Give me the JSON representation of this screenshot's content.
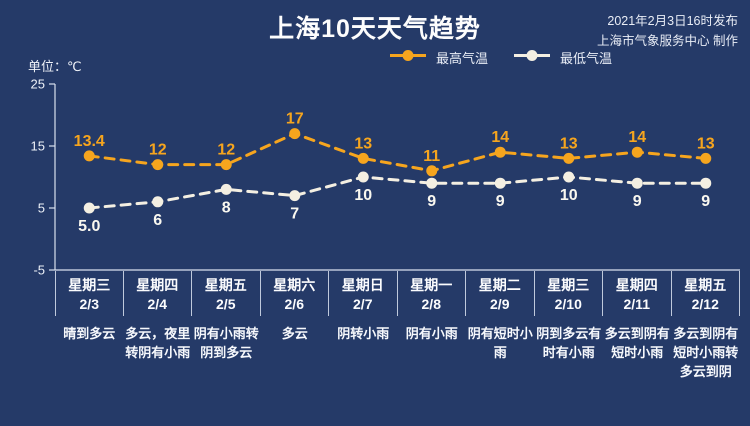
{
  "header": {
    "title": "上海10天天气趋势",
    "issued_line1": "2021年2月3日16时发布",
    "issued_line2": "上海市气象服务中心 制作"
  },
  "colors": {
    "background": "#253A68",
    "max_series": "#F6A51E",
    "min_series": "#F4EFE2",
    "axis": "#D9E0EE",
    "text": "#FFFFFF"
  },
  "chart_data": {
    "type": "line",
    "title": "上海10天天气趋势",
    "unit_label": "单位：℃",
    "ylim": [
      -5,
      25
    ],
    "y_ticks": [
      25,
      15,
      5,
      -5
    ],
    "grid": false,
    "legend_position": "top-center",
    "line_style": "dashed-with-dot-markers",
    "categories": [
      {
        "weekday": "星期三",
        "date": "2/3",
        "weather": "晴到多云"
      },
      {
        "weekday": "星期四",
        "date": "2/4",
        "weather": "多云，夜里转阴有小雨"
      },
      {
        "weekday": "星期五",
        "date": "2/5",
        "weather": "阴有小雨转阴到多云"
      },
      {
        "weekday": "星期六",
        "date": "2/6",
        "weather": "多云"
      },
      {
        "weekday": "星期日",
        "date": "2/7",
        "weather": "阴转小雨"
      },
      {
        "weekday": "星期一",
        "date": "2/8",
        "weather": "阴有小雨"
      },
      {
        "weekday": "星期二",
        "date": "2/9",
        "weather": "阴有短时小雨"
      },
      {
        "weekday": "星期三",
        "date": "2/10",
        "weather": "阴到多云有时有小雨"
      },
      {
        "weekday": "星期四",
        "date": "2/11",
        "weather": "多云到阴有短时小雨"
      },
      {
        "weekday": "星期五",
        "date": "2/12",
        "weather": "多云到阴有短时小雨转多云到阴"
      }
    ],
    "series": [
      {
        "name": "最高气温",
        "key": "max-temp",
        "color": "#F6A51E",
        "label_color": "#F6A51E",
        "label_position": "above",
        "values": [
          13.4,
          12,
          12,
          17,
          13,
          11,
          14,
          13,
          14,
          13
        ],
        "labels": [
          "13.4",
          "12",
          "12",
          "17",
          "13",
          "11",
          "14",
          "13",
          "14",
          "13"
        ]
      },
      {
        "name": "最低气温",
        "key": "min-temp",
        "color": "#F4EFE2",
        "label_color": "#FAF8F0",
        "label_position": "below",
        "values": [
          5.0,
          6,
          8,
          7,
          10,
          9,
          9,
          10,
          9,
          9
        ],
        "labels": [
          "5.0",
          "6",
          "8",
          "7",
          "10",
          "9",
          "9",
          "10",
          "9",
          "9"
        ]
      }
    ]
  }
}
